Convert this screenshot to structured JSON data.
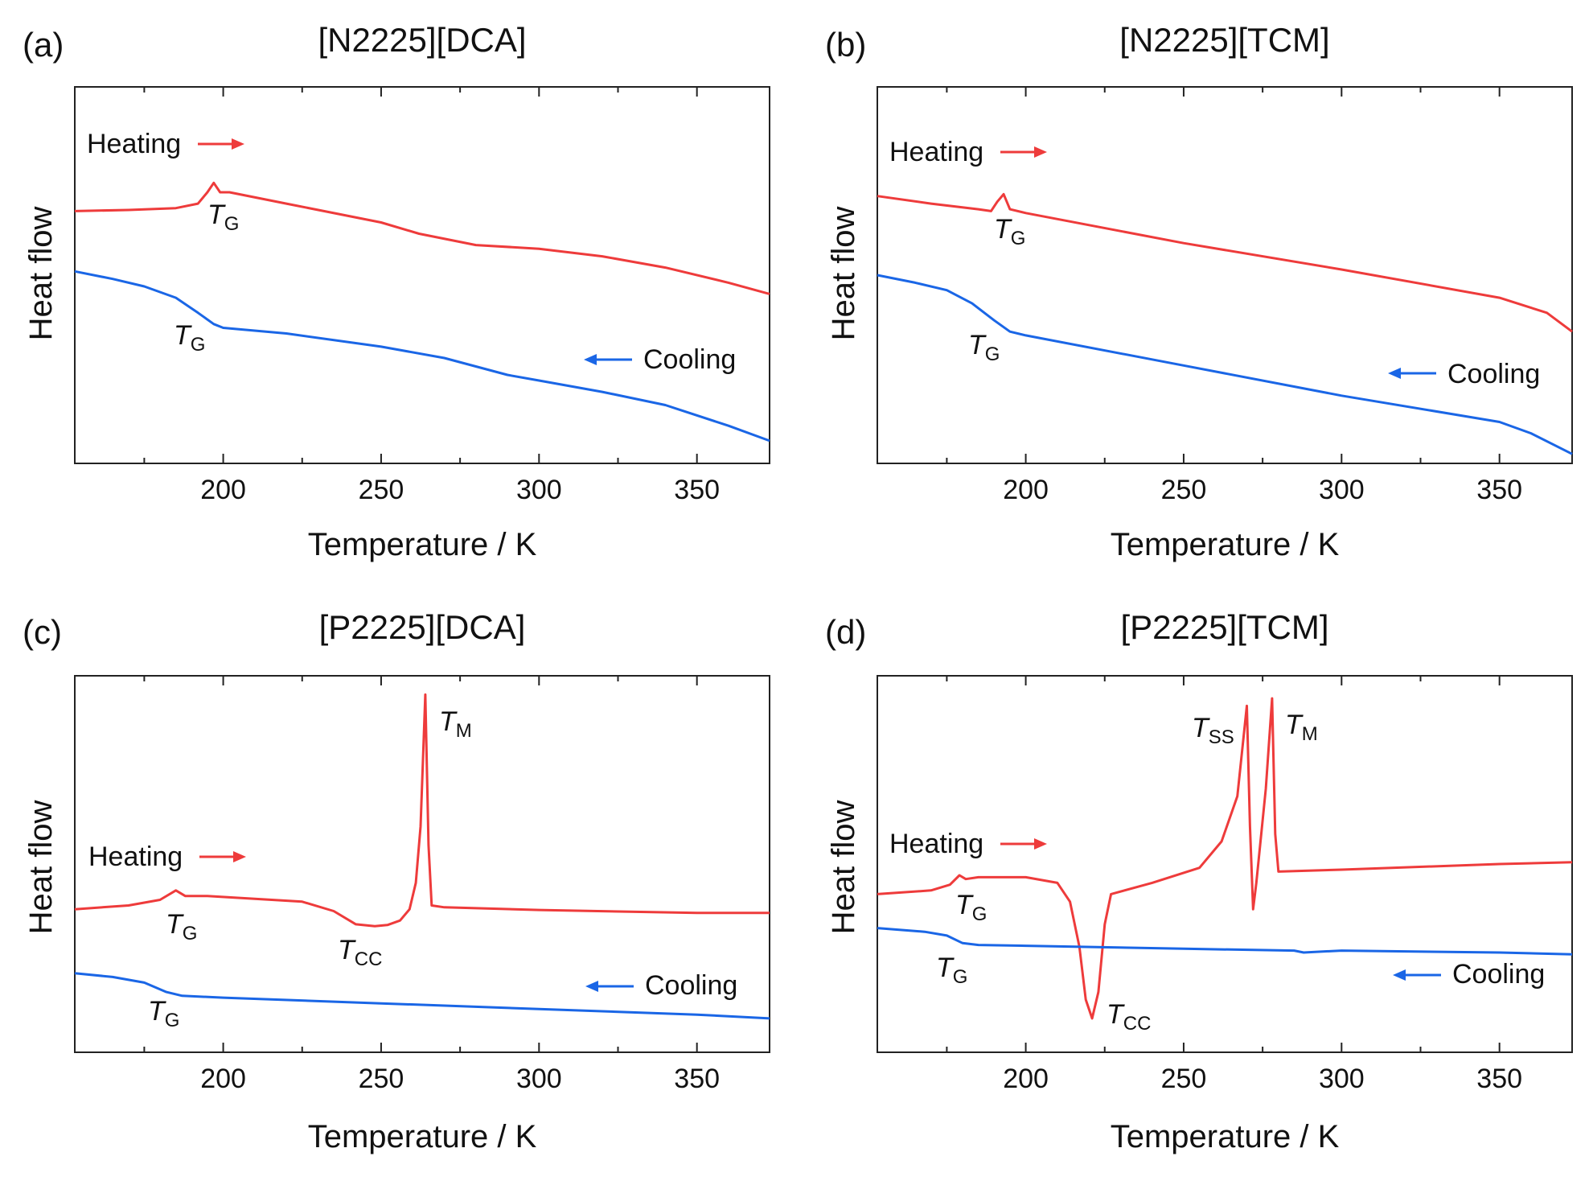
{
  "chart_data": [
    {
      "type": "line",
      "panel_label": "(a)",
      "title": "[N2225][DCA]",
      "xlabel": "Temperature / K",
      "ylabel": "Heat flow",
      "xlim": [
        153,
        373
      ],
      "ylim": [
        0,
        100
      ],
      "xticks": [
        200,
        250,
        300,
        350
      ],
      "xtick_labels": [
        "200",
        "250",
        "300",
        "350"
      ],
      "series": [
        {
          "name": "Heating",
          "color": "#ee3b3b",
          "x": [
            153,
            170,
            185,
            192,
            195,
            197,
            199,
            202,
            220,
            250,
            262,
            280,
            300,
            320,
            340,
            360,
            373
          ],
          "y": [
            67,
            67.3,
            67.8,
            69,
            72,
            74.5,
            72,
            72,
            69,
            64,
            61,
            58,
            57,
            55,
            52,
            48,
            45
          ]
        },
        {
          "name": "Cooling",
          "color": "#1a66e6",
          "x": [
            153,
            165,
            175,
            185,
            192,
            197,
            200,
            220,
            250,
            270,
            290,
            300,
            320,
            340,
            360,
            373
          ],
          "y": [
            51,
            49,
            47,
            44,
            40,
            37,
            36,
            34.5,
            31,
            28,
            23.5,
            22,
            19,
            15.5,
            10,
            6
          ]
        }
      ],
      "annotations": [
        {
          "main": "T",
          "sub": "G"
        },
        {
          "main": "T",
          "sub": "G"
        }
      ],
      "legend": {
        "heating": "Heating",
        "cooling": "Cooling"
      }
    },
    {
      "type": "line",
      "panel_label": "(b)",
      "title": "[N2225][TCM]",
      "xlabel": "Temperature / K",
      "ylabel": "Heat flow",
      "xlim": [
        153,
        373
      ],
      "ylim": [
        0,
        100
      ],
      "xticks": [
        200,
        250,
        300,
        350
      ],
      "xtick_labels": [
        "200",
        "250",
        "300",
        "350"
      ],
      "series": [
        {
          "name": "Heating",
          "color": "#ee3b3b",
          "x": [
            153,
            170,
            185,
            189,
            191,
            193,
            195,
            200,
            250,
            300,
            350,
            365,
            373
          ],
          "y": [
            71,
            69,
            67.5,
            67,
            69.5,
            71.5,
            67.5,
            66.5,
            58.5,
            51.5,
            44,
            40,
            35
          ]
        },
        {
          "name": "Cooling",
          "color": "#1a66e6",
          "x": [
            153,
            165,
            175,
            183,
            190,
            195,
            200,
            250,
            300,
            350,
            360,
            373
          ],
          "y": [
            50,
            48,
            46,
            42.5,
            38,
            35,
            34,
            26,
            18,
            11,
            8,
            2.5
          ]
        }
      ],
      "annotations": [
        {
          "main": "T",
          "sub": "G"
        },
        {
          "main": "T",
          "sub": "G"
        }
      ],
      "legend": {
        "heating": "Heating",
        "cooling": "Cooling"
      }
    },
    {
      "type": "line",
      "panel_label": "(c)",
      "title": "[P2225][DCA]",
      "xlabel": "Temperature / K",
      "ylabel": "Heat flow",
      "xlim": [
        153,
        373
      ],
      "ylim": [
        0,
        100
      ],
      "xticks": [
        200,
        250,
        300,
        350
      ],
      "xtick_labels": [
        "200",
        "250",
        "300",
        "350"
      ],
      "series": [
        {
          "name": "Heating",
          "color": "#ee3b3b",
          "x": [
            153,
            170,
            180,
            185,
            188,
            195,
            225,
            235,
            242,
            248,
            252,
            256,
            259,
            261,
            262.5,
            264,
            265,
            266,
            270,
            300,
            350,
            373
          ],
          "y": [
            38,
            39,
            40.5,
            43,
            41.5,
            41.5,
            40,
            37.5,
            34,
            33.5,
            33.8,
            35,
            38,
            45,
            60,
            95,
            55,
            39,
            38.5,
            37.8,
            37,
            37
          ]
        },
        {
          "name": "Cooling",
          "color": "#1a66e6",
          "x": [
            153,
            165,
            175,
            182,
            187,
            200,
            250,
            300,
            350,
            373
          ],
          "y": [
            21,
            20,
            18.5,
            16,
            15,
            14.5,
            13,
            11.5,
            10,
            9
          ]
        }
      ],
      "annotations": [
        {
          "main": "T",
          "sub": "M"
        },
        {
          "main": "T",
          "sub": "G"
        },
        {
          "main": "T",
          "sub": "CC"
        },
        {
          "main": "T",
          "sub": "G"
        }
      ],
      "legend": {
        "heating": "Heating",
        "cooling": "Cooling"
      }
    },
    {
      "type": "line",
      "panel_label": "(d)",
      "title": "[P2225][TCM]",
      "xlabel": "Temperature / K",
      "ylabel": "Heat flow",
      "xlim": [
        153,
        373
      ],
      "ylim": [
        0,
        100
      ],
      "xticks": [
        200,
        250,
        300,
        350
      ],
      "xtick_labels": [
        "200",
        "250",
        "300",
        "350"
      ],
      "series": [
        {
          "name": "Heating",
          "color": "#ee3b3b",
          "x": [
            153,
            170,
            176,
            179,
            181,
            185,
            200,
            210,
            214,
            217,
            219,
            221,
            223,
            225,
            227,
            240,
            255,
            262,
            267,
            270,
            271,
            272,
            273,
            276,
            278,
            279,
            280,
            300,
            350,
            373
          ],
          "y": [
            42,
            43,
            44.5,
            47,
            46,
            46.5,
            46.5,
            45,
            40,
            28,
            14,
            9,
            16,
            34,
            42,
            45,
            49,
            56,
            68,
            92,
            60,
            38,
            45,
            70,
            94,
            58,
            48,
            48.5,
            50,
            50.5
          ]
        },
        {
          "name": "Cooling",
          "color": "#1a66e6",
          "x": [
            153,
            168,
            175,
            180,
            185,
            200,
            250,
            285,
            288,
            300,
            350,
            373
          ],
          "y": [
            33,
            32,
            31,
            29,
            28.5,
            28.3,
            27.5,
            27,
            26.5,
            27,
            26.5,
            26
          ]
        }
      ],
      "annotations": [
        {
          "main": "T",
          "sub": "SS"
        },
        {
          "main": "T",
          "sub": "M"
        },
        {
          "main": "T",
          "sub": "G"
        },
        {
          "main": "T",
          "sub": "CC"
        },
        {
          "main": "T",
          "sub": "G"
        }
      ],
      "legend": {
        "heating": "Heating",
        "cooling": "Cooling"
      }
    }
  ]
}
